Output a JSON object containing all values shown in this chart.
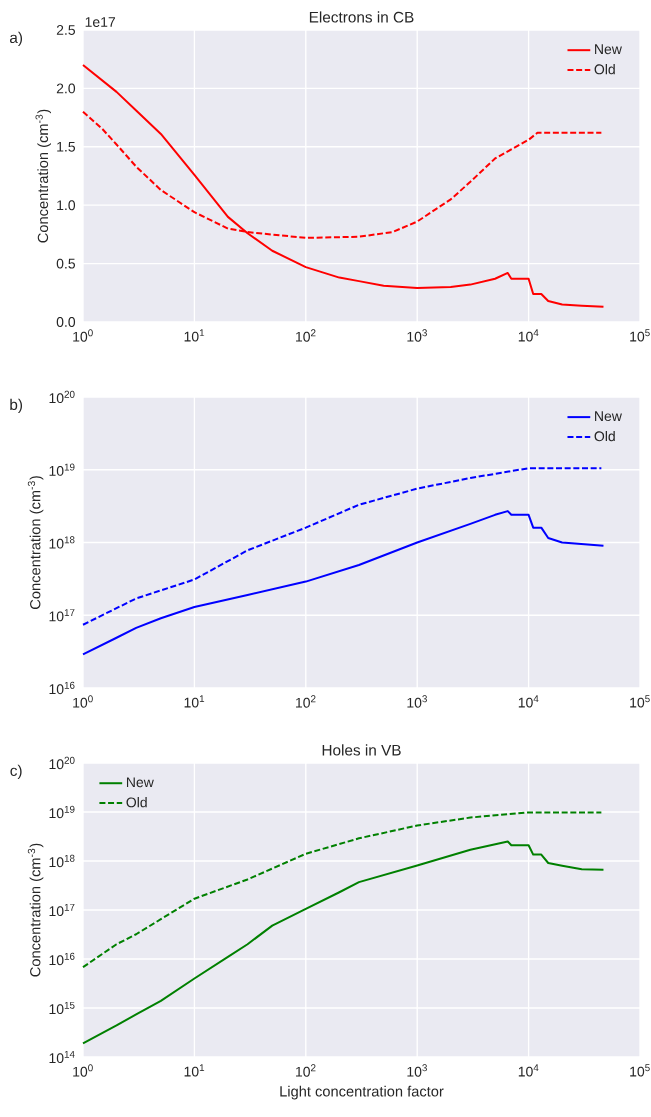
{
  "chart_data": [
    {
      "type": "line",
      "title": "Electrons in CB",
      "ylabel": "Concentration (cm$^{-3}$)",
      "annotations": [
        "a)",
        "1e17"
      ],
      "log": "x",
      "xlim": [
        1,
        100000
      ],
      "xticks": [
        {
          "value": 1,
          "label": "10$^{0}$"
        },
        {
          "value": 10,
          "label": "10$^{1}$"
        },
        {
          "value": 100,
          "label": "10$^{2}$"
        },
        {
          "value": 1000,
          "label": "10$^{3}$"
        },
        {
          "value": 10000,
          "label": "10$^{4}$"
        },
        {
          "value": 100000,
          "label": "10$^{5}$"
        }
      ],
      "ylim": [
        0,
        2.5
      ],
      "yticks": [
        {
          "value": 0,
          "label": "0.0"
        },
        {
          "value": 0.5,
          "label": "0.5"
        },
        {
          "value": 1,
          "label": "1.0"
        },
        {
          "value": 1.5,
          "label": "1.5"
        },
        {
          "value": 2,
          "label": "2.0"
        },
        {
          "value": 2.5,
          "label": "2.5"
        }
      ],
      "grid": true,
      "legend": "top right",
      "series": [
        {
          "name": "New",
          "color": "#ff0000",
          "line_style": "solid",
          "x": [
            1,
            2,
            3,
            5,
            10,
            20,
            30,
            50,
            100,
            200,
            300,
            500,
            1000,
            2000,
            3000,
            5000,
            6500,
            7000,
            10000,
            11000,
            13000,
            15000,
            20000,
            30000,
            47000
          ],
          "values": [
            2.2,
            1.97,
            1.81,
            1.61,
            1.26,
            0.9,
            0.76,
            0.61,
            0.47,
            0.38,
            0.35,
            0.31,
            0.29,
            0.3,
            0.32,
            0.37,
            0.42,
            0.37,
            0.37,
            0.24,
            0.24,
            0.18,
            0.15,
            0.14,
            0.13
          ]
        },
        {
          "name": "Old",
          "color": "#ff0000",
          "line_style": "dashed",
          "x": [
            1,
            1.5,
            2,
            3,
            5,
            10,
            20,
            30,
            100,
            300,
            600,
            1000,
            2000,
            3000,
            5000,
            10000,
            12000,
            45000
          ],
          "values": [
            1.8,
            1.65,
            1.52,
            1.33,
            1.13,
            0.94,
            0.8,
            0.77,
            0.72,
            0.73,
            0.77,
            0.86,
            1.05,
            1.2,
            1.4,
            1.56,
            1.62,
            1.62
          ]
        }
      ]
    },
    {
      "type": "line",
      "ylabel": "Concentration (cm$^{-3}$)",
      "annotations": [
        "b)"
      ],
      "log": "xy",
      "xlim": [
        1,
        100000
      ],
      "xticks": [
        {
          "value": 1,
          "label": "10$^{0}$"
        },
        {
          "value": 10,
          "label": "10$^{1}$"
        },
        {
          "value": 100,
          "label": "10$^{2}$"
        },
        {
          "value": 1000,
          "label": "10$^{3}$"
        },
        {
          "value": 10000,
          "label": "10$^{4}$"
        },
        {
          "value": 100000,
          "label": "10$^{5}$"
        }
      ],
      "ylim": [
        1e+16,
        1e+20
      ],
      "yticks": [
        {
          "value": 1e+16,
          "label": "10$^{16}$"
        },
        {
          "value": 1e+17,
          "label": "10$^{17}$"
        },
        {
          "value": 1e+18,
          "label": "10$^{18}$"
        },
        {
          "value": 1e+19,
          "label": "10$^{19}$"
        },
        {
          "value": 1e+20,
          "label": "10$^{20}$"
        }
      ],
      "grid": true,
      "legend": "top right",
      "series": [
        {
          "name": "New",
          "color": "#0000ff",
          "line_style": "solid",
          "x": [
            1,
            2,
            3,
            5,
            10,
            30,
            100,
            300,
            1000,
            3000,
            5000,
            6500,
            7000,
            10000,
            11000,
            13000,
            15000,
            20000,
            47000
          ],
          "values": [
            2.9e+16,
            4.9e+16,
            6.7e+16,
            9.1e+16,
            1.3e+17,
            1.9e+17,
            2.9e+17,
            4.9e+17,
            1e+18,
            1.8e+18,
            2.4e+18,
            2.7e+18,
            2.4e+18,
            2.4e+18,
            1.6e+18,
            1.6e+18,
            1.15e+18,
            1e+18,
            9e+17
          ]
        },
        {
          "name": "Old",
          "color": "#0000ff",
          "line_style": "dashed",
          "x": [
            1,
            3,
            10,
            30,
            100,
            300,
            1000,
            3000,
            10000,
            45000
          ],
          "values": [
            7.4e+16,
            1.7e+17,
            3.1e+17,
            7.8e+17,
            1.6e+18,
            3.3e+18,
            5.5e+18,
            7.7e+18,
            1.05e+19,
            1.05e+19
          ]
        }
      ]
    },
    {
      "type": "line",
      "title": "Holes in VB",
      "xlabel": "Light concentration factor",
      "ylabel": "Concentration (cm$^{-3}$)",
      "annotations": [
        "c)"
      ],
      "log": "xy",
      "xlim": [
        1,
        100000
      ],
      "xticks": [
        {
          "value": 1,
          "label": "10$^{0}$"
        },
        {
          "value": 10,
          "label": "10$^{1}$"
        },
        {
          "value": 100,
          "label": "10$^{2}$"
        },
        {
          "value": 1000,
          "label": "10$^{3}$"
        },
        {
          "value": 10000,
          "label": "10$^{4}$"
        },
        {
          "value": 100000,
          "label": "10$^{5}$"
        }
      ],
      "ylim": [
        100000000000000.0,
        1e+20
      ],
      "yticks": [
        {
          "value": 100000000000000.0,
          "label": "10$^{14}$"
        },
        {
          "value": 1000000000000000.0,
          "label": "10$^{15}$"
        },
        {
          "value": 1e+16,
          "label": "10$^{16}$"
        },
        {
          "value": 1e+17,
          "label": "10$^{17}$"
        },
        {
          "value": 1e+18,
          "label": "10$^{18}$"
        },
        {
          "value": 1e+19,
          "label": "10$^{19}$"
        },
        {
          "value": 1e+20,
          "label": "10$^{20}$"
        }
      ],
      "grid": true,
      "legend": "top left",
      "series": [
        {
          "name": "New",
          "color": "#008000",
          "line_style": "solid",
          "x": [
            1,
            2,
            3,
            5,
            10,
            20,
            30,
            50,
            100,
            200,
            300,
            1000,
            3000,
            6500,
            7000,
            10000,
            11000,
            13000,
            15000,
            20000,
            30000,
            47000
          ],
          "values": [
            190000000000000.0,
            440000000000000.0,
            740000000000000.0,
            1400000000000000.0,
            4000000000000000.0,
            1.1e+16,
            2e+16,
            4.8e+16,
            1.05e+17,
            2.3e+17,
            3.7e+17,
            8.1e+17,
            1.7e+18,
            2.5e+18,
            2.1e+18,
            2.1e+18,
            1.35e+18,
            1.35e+18,
            9.1e+17,
            8e+17,
            6.8e+17,
            6.6e+17
          ]
        },
        {
          "name": "Old",
          "color": "#008000",
          "line_style": "dashed",
          "x": [
            1,
            2,
            3,
            5,
            10,
            30,
            100,
            300,
            1000,
            3000,
            10000,
            45000
          ],
          "values": [
            6800000000000000.0,
            2e+16,
            3.2e+16,
            6.5e+16,
            1.7e+17,
            4.2e+17,
            1.4e+18,
            2.9e+18,
            5.3e+18,
            7.7e+18,
            9.8e+18,
            9.8e+18
          ]
        }
      ]
    }
  ]
}
